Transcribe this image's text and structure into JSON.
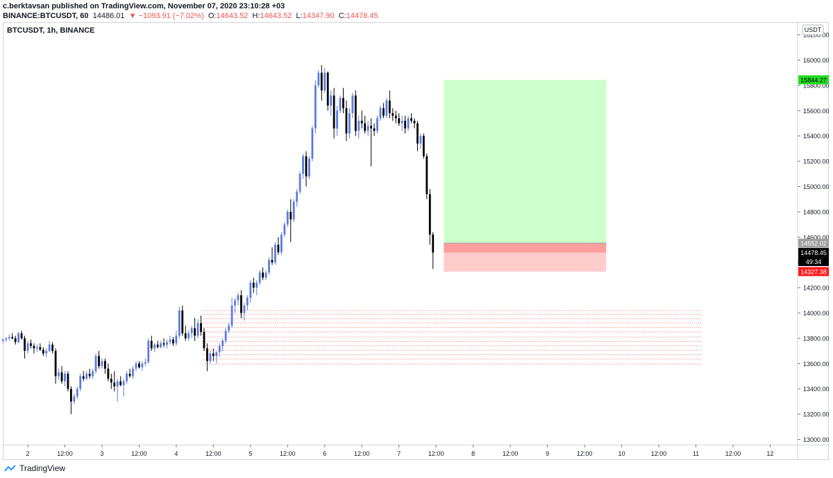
{
  "header": {
    "line1": "c.berktavsan published on TradingView.com, November 07, 2020 23:10:28 +03",
    "symbol": "BINANCE:BTCUSDT, 60",
    "last": "14486.01",
    "change": "▼ −1093.91 (−7.02%)",
    "o_label": "O:",
    "o": "14643.52",
    "h_label": "H:",
    "h": "14643.52",
    "l_label": "L:",
    "l": "14347.90",
    "c_label": "C:",
    "c": "14478.45"
  },
  "chart_label": "BTCUSDT, 1h, BINANCE",
  "footer": {
    "brand": "TradingView"
  },
  "colors": {
    "up": "#5b7be0",
    "down": "#000000",
    "target": "#ccffcc",
    "stop": "#ffcccc",
    "stop_dark": "#ff9e9e",
    "level": "#ff6b6b",
    "target_tag": "#22dd22",
    "stop_tag": "#ff1a1a",
    "entry_tag": "#9e9e9e",
    "price_tag": "#000000"
  },
  "chart_data": {
    "type": "candlestick",
    "title": "BTCUSDT, 1h, BINANCE",
    "currency": "USDT",
    "ylim": [
      12900,
      16300
    ],
    "yticks": [
      13000,
      13200,
      13400,
      13600,
      13800,
      14000,
      14200,
      14400,
      14600,
      14800,
      15000,
      15200,
      15400,
      15600,
      15800,
      16000,
      16200
    ],
    "ytick_labels": [
      "13000.00",
      "13200.00",
      "13400.00",
      "13600.00",
      "13800.00",
      "14000.00",
      "14200.00",
      "14400.00",
      "14600.00",
      "14800.00",
      "15000.00",
      "15200.00",
      "15400.00",
      "15600.00",
      "15800.00",
      "16000.00",
      "16200.00"
    ],
    "x_ticks": [
      "2",
      "12:00",
      "3",
      "12:00",
      "4",
      "12:00",
      "5",
      "12:00",
      "6",
      "12:00",
      "7",
      "12:00",
      "8",
      "12:00",
      "9",
      "12:00",
      "10",
      "12:00",
      "11",
      "12:00",
      "12"
    ],
    "x_tick_hours": [
      0,
      12,
      24,
      36,
      48,
      60,
      72,
      84,
      96,
      108,
      120,
      132,
      144,
      156,
      168,
      180,
      192,
      204,
      216,
      228,
      240
    ],
    "x_start_hour": -8,
    "grid": false,
    "long_position": {
      "entry": 14552.02,
      "target": 15844.27,
      "stop": 14327.38,
      "start_hour": 134.5,
      "end_hour": 187
    },
    "level_lines": {
      "start_hour": 56.5,
      "end_hour": 218,
      "prices": [
        14020,
        13990,
        13955,
        13920,
        13885,
        13850,
        13810,
        13775,
        13740,
        13705,
        13670,
        13635,
        13595
      ]
    },
    "price_tags": [
      {
        "label": "15844.27",
        "price": 15844.27,
        "role": "target"
      },
      {
        "label": "14552.02",
        "price": 14552.02,
        "role": "entry"
      },
      {
        "label": "14478.45",
        "price": 14478.45,
        "role": "last"
      },
      {
        "label": "49:34",
        "price": 14400,
        "role": "countdown"
      },
      {
        "label": "14327.38",
        "price": 14327.38,
        "role": "stop"
      }
    ],
    "candles_ohlc": [
      [
        13780,
        13800,
        13760,
        13790
      ],
      [
        13790,
        13810,
        13770,
        13800
      ],
      [
        13800,
        13830,
        13780,
        13810
      ],
      [
        13810,
        13840,
        13790,
        13800
      ],
      [
        13800,
        13820,
        13750,
        13770
      ],
      [
        13770,
        13850,
        13760,
        13840
      ],
      [
        13840,
        13860,
        13790,
        13800
      ],
      [
        13800,
        13820,
        13640,
        13700
      ],
      [
        13700,
        13780,
        13680,
        13760
      ],
      [
        13760,
        13790,
        13720,
        13740
      ],
      [
        13740,
        13760,
        13680,
        13720
      ],
      [
        13720,
        13750,
        13690,
        13730
      ],
      [
        13730,
        13760,
        13700,
        13710
      ],
      [
        13710,
        13730,
        13660,
        13680
      ],
      [
        13680,
        13720,
        13650,
        13700
      ],
      [
        13700,
        13780,
        13690,
        13750
      ],
      [
        13750,
        13770,
        13680,
        13700
      ],
      [
        13700,
        13720,
        13440,
        13500
      ],
      [
        13500,
        13560,
        13470,
        13530
      ],
      [
        13530,
        13580,
        13440,
        13460
      ],
      [
        13460,
        13540,
        13420,
        13520
      ],
      [
        13520,
        13540,
        13380,
        13400
      ],
      [
        13400,
        13420,
        13200,
        13300
      ],
      [
        13300,
        13360,
        13280,
        13340
      ],
      [
        13340,
        13420,
        13320,
        13400
      ],
      [
        13400,
        13520,
        13380,
        13500
      ],
      [
        13500,
        13540,
        13460,
        13480
      ],
      [
        13480,
        13540,
        13470,
        13520
      ],
      [
        13520,
        13560,
        13480,
        13500
      ],
      [
        13500,
        13560,
        13480,
        13540
      ],
      [
        13540,
        13680,
        13520,
        13660
      ],
      [
        13660,
        13700,
        13560,
        13580
      ],
      [
        13580,
        13640,
        13560,
        13620
      ],
      [
        13620,
        13640,
        13520,
        13560
      ],
      [
        13560,
        13600,
        13460,
        13480
      ],
      [
        13480,
        13520,
        13400,
        13450
      ],
      [
        13450,
        13540,
        13380,
        13420
      ],
      [
        13420,
        13480,
        13300,
        13460
      ],
      [
        13460,
        13500,
        13420,
        13430
      ],
      [
        13430,
        13480,
        13340,
        13460
      ],
      [
        13460,
        13540,
        13440,
        13520
      ],
      [
        13520,
        13560,
        13490,
        13500
      ],
      [
        13500,
        13580,
        13480,
        13560
      ],
      [
        13560,
        13620,
        13540,
        13600
      ],
      [
        13600,
        13620,
        13560,
        13570
      ],
      [
        13570,
        13620,
        13540,
        13600
      ],
      [
        13600,
        13640,
        13580,
        13610
      ],
      [
        13610,
        13800,
        13600,
        13780
      ],
      [
        13780,
        13820,
        13700,
        13720
      ],
      [
        13720,
        13760,
        13690,
        13750
      ],
      [
        13750,
        13780,
        13720,
        13730
      ],
      [
        13730,
        13780,
        13720,
        13760
      ],
      [
        13760,
        13800,
        13730,
        13750
      ],
      [
        13750,
        13790,
        13720,
        13770
      ],
      [
        13770,
        13820,
        13750,
        13790
      ],
      [
        13790,
        13810,
        13740,
        13760
      ],
      [
        13760,
        13860,
        13740,
        13820
      ],
      [
        13820,
        14050,
        13800,
        14020
      ],
      [
        14020,
        14060,
        13820,
        13840
      ],
      [
        13840,
        13900,
        13780,
        13800
      ],
      [
        13800,
        13860,
        13780,
        13840
      ],
      [
        13840,
        13900,
        13800,
        13880
      ],
      [
        13880,
        13960,
        13780,
        13820
      ],
      [
        13820,
        13950,
        13800,
        13920
      ],
      [
        13920,
        13980,
        13820,
        13850
      ],
      [
        13850,
        13880,
        13700,
        13720
      ],
      [
        13720,
        13760,
        13540,
        13620
      ],
      [
        13620,
        13700,
        13600,
        13680
      ],
      [
        13680,
        13720,
        13620,
        13660
      ],
      [
        13660,
        13700,
        13600,
        13690
      ],
      [
        13690,
        13760,
        13650,
        13740
      ],
      [
        13740,
        13800,
        13700,
        13780
      ],
      [
        13780,
        13880,
        13760,
        13860
      ],
      [
        13860,
        13920,
        13840,
        13900
      ],
      [
        13900,
        14120,
        13880,
        14060
      ],
      [
        14060,
        14120,
        14000,
        14100
      ],
      [
        14100,
        14160,
        14060,
        14140
      ],
      [
        14140,
        14180,
        13960,
        14000
      ],
      [
        14000,
        14080,
        13940,
        14060
      ],
      [
        14060,
        14140,
        14020,
        14120
      ],
      [
        14120,
        14260,
        14080,
        14240
      ],
      [
        14240,
        14280,
        14160,
        14200
      ],
      [
        14200,
        14260,
        14140,
        14240
      ],
      [
        14240,
        14340,
        14220,
        14320
      ],
      [
        14320,
        14360,
        14260,
        14280
      ],
      [
        14280,
        14340,
        14260,
        14320
      ],
      [
        14320,
        14440,
        14300,
        14420
      ],
      [
        14420,
        14520,
        14380,
        14400
      ],
      [
        14400,
        14560,
        14380,
        14540
      ],
      [
        14540,
        14600,
        14460,
        14480
      ],
      [
        14480,
        14640,
        14460,
        14620
      ],
      [
        14620,
        14720,
        14600,
        14700
      ],
      [
        14700,
        14820,
        14680,
        14800
      ],
      [
        14800,
        14900,
        14560,
        14740
      ],
      [
        14740,
        14900,
        14720,
        14880
      ],
      [
        14880,
        14980,
        14840,
        14960
      ],
      [
        14960,
        15120,
        14940,
        15100
      ],
      [
        15100,
        15260,
        15060,
        15240
      ],
      [
        15240,
        15280,
        15000,
        15080
      ],
      [
        15080,
        15240,
        15060,
        15220
      ],
      [
        15220,
        15480,
        15200,
        15460
      ],
      [
        15460,
        15840,
        15420,
        15800
      ],
      [
        15800,
        15920,
        15780,
        15900
      ],
      [
        15900,
        15960,
        15680,
        15760
      ],
      [
        15760,
        15940,
        15740,
        15900
      ],
      [
        15900,
        15910,
        15600,
        15640
      ],
      [
        15640,
        15760,
        15560,
        15720
      ],
      [
        15720,
        15780,
        15380,
        15460
      ],
      [
        15460,
        15640,
        15400,
        15600
      ],
      [
        15600,
        15720,
        15580,
        15700
      ],
      [
        15700,
        15780,
        15580,
        15620
      ],
      [
        15620,
        15680,
        15360,
        15420
      ],
      [
        15420,
        15620,
        15380,
        15580
      ],
      [
        15580,
        15740,
        15540,
        15720
      ],
      [
        15720,
        15760,
        15400,
        15440
      ],
      [
        15440,
        15560,
        15380,
        15520
      ],
      [
        15520,
        15600,
        15460,
        15500
      ],
      [
        15500,
        15560,
        15420,
        15440
      ],
      [
        15440,
        15520,
        15400,
        15480
      ],
      [
        15480,
        15540,
        15160,
        15460
      ],
      [
        15460,
        15500,
        15400,
        15440
      ],
      [
        15440,
        15560,
        15420,
        15540
      ],
      [
        15540,
        15640,
        15520,
        15620
      ],
      [
        15620,
        15660,
        15540,
        15560
      ],
      [
        15560,
        15700,
        15540,
        15680
      ],
      [
        15680,
        15760,
        15540,
        15580
      ],
      [
        15580,
        15620,
        15520,
        15560
      ],
      [
        15560,
        15600,
        15500,
        15540
      ],
      [
        15540,
        15580,
        15480,
        15500
      ],
      [
        15500,
        15560,
        15440,
        15520
      ],
      [
        15520,
        15560,
        15420,
        15460
      ],
      [
        15460,
        15560,
        15440,
        15540
      ],
      [
        15540,
        15580,
        15500,
        15520
      ],
      [
        15520,
        15540,
        15460,
        15500
      ],
      [
        15500,
        15520,
        15280,
        15340
      ],
      [
        15340,
        15420,
        15300,
        15400
      ],
      [
        15400,
        15420,
        15220,
        15240
      ],
      [
        15240,
        15260,
        14900,
        14940
      ],
      [
        14940,
        14980,
        14540,
        14620
      ],
      [
        14620,
        14640,
        14348,
        14478
      ]
    ]
  }
}
